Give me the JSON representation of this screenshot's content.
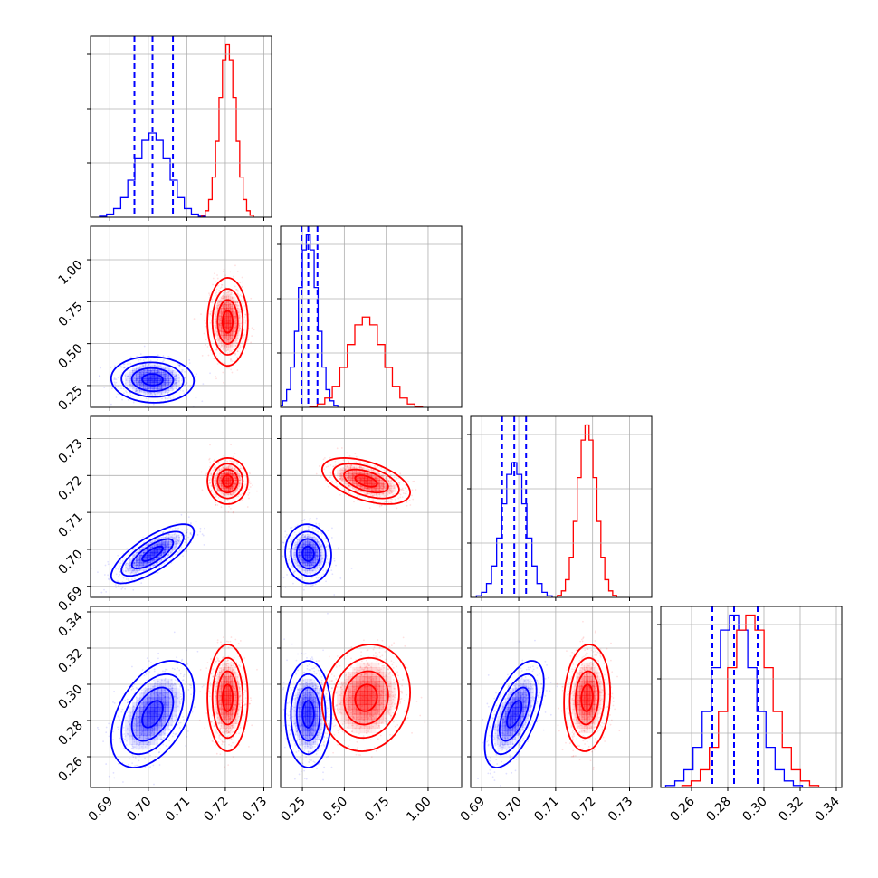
{
  "chart_data": {
    "type": "corner",
    "title": "",
    "parameters": [
      {
        "label": "",
        "range": [
          0.685,
          0.732
        ],
        "ticks": [
          "0.69",
          "0.70",
          "0.71",
          "0.72",
          "0.73"
        ],
        "tick_values": [
          0.69,
          0.7,
          0.71,
          0.72,
          0.73
        ]
      },
      {
        "label": "",
        "range": [
          0.12,
          1.2
        ],
        "ticks": [
          "0.25",
          "0.50",
          "0.75",
          "1.00"
        ],
        "tick_values": [
          0.25,
          0.5,
          0.75,
          1.0
        ]
      },
      {
        "label": "",
        "range": [
          0.687,
          0.736
        ],
        "ticks": [
          "0.69",
          "0.70",
          "0.71",
          "0.72",
          "0.73"
        ],
        "tick_values": [
          0.69,
          0.7,
          0.71,
          0.72,
          0.73
        ]
      },
      {
        "label": "",
        "range": [
          0.243,
          0.343
        ],
        "ticks": [
          "0.26",
          "0.28",
          "0.30",
          "0.32",
          "0.34"
        ],
        "tick_values": [
          0.26,
          0.28,
          0.3,
          0.32,
          0.34
        ]
      }
    ],
    "colors": {
      "series_a": "#0000ff",
      "series_b": "#ff0000",
      "grid": "#b0b0b0"
    },
    "grid": true,
    "series": [
      {
        "color": "#0000ff",
        "means": [
          0.7011,
          0.285,
          0.6988,
          0.2835
        ],
        "std": [
          0.0043,
          0.055,
          0.0032,
          0.0118
        ],
        "corr": [
          [
            1,
            -0.05,
            0.75,
            0.45
          ],
          [
            -0.05,
            1,
            -0.05,
            0.0
          ],
          [
            0.75,
            -0.05,
            1,
            0.6
          ],
          [
            0.45,
            0.0,
            0.6,
            1
          ]
        ],
        "quantiles": [
          [
            0.6964,
            0.7011,
            0.7064
          ],
          [
            0.245,
            0.285,
            0.34
          ],
          [
            0.6955,
            0.6988,
            0.702
          ],
          [
            0.2715,
            0.2835,
            0.2965
          ]
        ]
      },
      {
        "color": "#ff0000",
        "means": [
          0.7206,
          0.63,
          0.7185,
          0.2925
        ],
        "std": [
          0.0021,
          0.105,
          0.0025,
          0.0118
        ],
        "corr": [
          [
            1,
            0.0,
            0.0,
            0.0
          ],
          [
            0.0,
            1,
            -0.5,
            0.1
          ],
          [
            0.0,
            -0.5,
            1,
            0.1
          ],
          [
            0.0,
            0.1,
            0.1,
            1
          ]
        ],
        "quantiles": [
          [],
          [],
          [],
          []
        ]
      }
    ],
    "histogram_bins": 15,
    "contour_levels_sigma": [
      0.5,
      1.0,
      1.5,
      2.0
    ]
  }
}
